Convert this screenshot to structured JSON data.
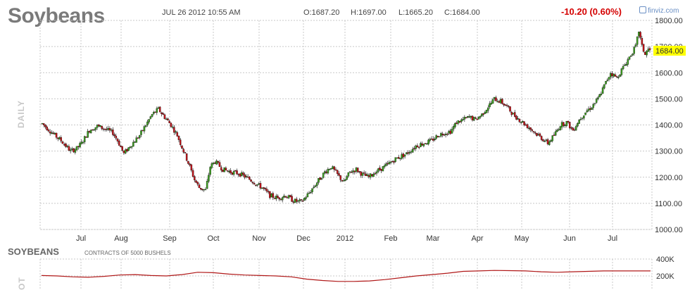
{
  "header": {
    "title": "Soybeans",
    "timestamp": "JUL 26 2012 10:55 AM",
    "open": "O:1687.20",
    "high": "H:1697.00",
    "low": "L:1665.20",
    "close": "C:1684.00",
    "change": "-10.20 (0.60%)",
    "brand": "finviz.com"
  },
  "chart_data": [
    {
      "type": "candlestick",
      "timeframe_label": "DAILY",
      "x_tick_labels": [
        "Jul",
        "Aug",
        "Sep",
        "Oct",
        "Nov",
        "Dec",
        "2012",
        "Feb",
        "Mar",
        "Apr",
        "May",
        "Jun",
        "Jul"
      ],
      "y_ticks": [
        1000,
        1100,
        1200,
        1300,
        1400,
        1500,
        1600,
        1700,
        1800
      ],
      "y_tick_labels": [
        "1000.00",
        "1100.00",
        "1200.00",
        "1300.00",
        "1400.00",
        "1500.00",
        "1600.00",
        "1700.00",
        "1800.00"
      ],
      "ylim": [
        1000,
        1800
      ],
      "grid": true,
      "last_price": 1684.0,
      "last_price_label": "1684.00",
      "colors": {
        "up": "#3a9c1e",
        "down": "#c0141a",
        "wick": "#000000",
        "grid": "#c8c8c8",
        "price_tag": "#ffff00"
      },
      "trend": [
        [
          0,
          1405
        ],
        [
          8,
          1360
        ],
        [
          12,
          1340
        ],
        [
          18,
          1300
        ],
        [
          22,
          1310
        ],
        [
          25,
          1330
        ],
        [
          30,
          1380
        ],
        [
          35,
          1395
        ],
        [
          40,
          1385
        ],
        [
          45,
          1370
        ],
        [
          48,
          1340
        ],
        [
          52,
          1290
        ],
        [
          56,
          1320
        ],
        [
          62,
          1360
        ],
        [
          66,
          1400
        ],
        [
          70,
          1440
        ],
        [
          74,
          1460
        ],
        [
          78,
          1430
        ],
        [
          82,
          1400
        ],
        [
          86,
          1360
        ],
        [
          90,
          1300
        ],
        [
          94,
          1240
        ],
        [
          97,
          1190
        ],
        [
          100,
          1160
        ],
        [
          104,
          1150
        ],
        [
          107,
          1240
        ],
        [
          110,
          1260
        ],
        [
          115,
          1230
        ],
        [
          120,
          1220
        ],
        [
          125,
          1215
        ],
        [
          130,
          1200
        ],
        [
          135,
          1180
        ],
        [
          140,
          1160
        ],
        [
          145,
          1130
        ],
        [
          150,
          1120
        ],
        [
          155,
          1130
        ],
        [
          160,
          1110
        ],
        [
          165,
          1105
        ],
        [
          170,
          1140
        ],
        [
          175,
          1180
        ],
        [
          180,
          1220
        ],
        [
          184,
          1240
        ],
        [
          188,
          1210
        ],
        [
          192,
          1180
        ],
        [
          196,
          1220
        ],
        [
          200,
          1230
        ],
        [
          204,
          1210
        ],
        [
          208,
          1200
        ],
        [
          212,
          1220
        ],
        [
          218,
          1240
        ],
        [
          225,
          1270
        ],
        [
          232,
          1290
        ],
        [
          238,
          1320
        ],
        [
          243,
          1330
        ],
        [
          248,
          1340
        ],
        [
          252,
          1360
        ],
        [
          256,
          1370
        ],
        [
          260,
          1375
        ],
        [
          264,
          1410
        ],
        [
          268,
          1420
        ],
        [
          272,
          1430
        ],
        [
          276,
          1420
        ],
        [
          280,
          1440
        ],
        [
          284,
          1470
        ],
        [
          288,
          1500
        ],
        [
          292,
          1490
        ],
        [
          296,
          1470
        ],
        [
          300,
          1440
        ],
        [
          304,
          1420
        ],
        [
          308,
          1400
        ],
        [
          312,
          1380
        ],
        [
          316,
          1360
        ],
        [
          320,
          1340
        ],
        [
          322,
          1330
        ],
        [
          326,
          1360
        ],
        [
          330,
          1400
        ],
        [
          334,
          1410
        ],
        [
          338,
          1380
        ],
        [
          342,
          1420
        ],
        [
          346,
          1450
        ],
        [
          350,
          1470
        ],
        [
          354,
          1500
        ],
        [
          358,
          1550
        ],
        [
          362,
          1600
        ],
        [
          366,
          1580
        ],
        [
          370,
          1620
        ],
        [
          374,
          1660
        ],
        [
          378,
          1700
        ],
        [
          380,
          1760
        ],
        [
          382,
          1700
        ],
        [
          384,
          1670
        ],
        [
          386,
          1690
        ],
        [
          387,
          1684
        ]
      ]
    },
    {
      "type": "line",
      "title": "SOYBEANS",
      "subtitle": "CONTRACTS OF 5000 BUSHELS",
      "side_label": "OT",
      "y_tick_labels": [
        "400K",
        "200K"
      ],
      "colors": {
        "line": "#b01818"
      },
      "values": [
        205,
        200,
        190,
        185,
        195,
        210,
        215,
        205,
        200,
        215,
        240,
        235,
        220,
        210,
        205,
        200,
        190,
        165,
        150,
        140,
        140,
        145,
        160,
        180,
        200,
        215,
        230,
        250,
        255,
        260,
        258,
        255,
        245,
        240,
        245,
        250,
        255,
        255,
        255,
        255
      ]
    }
  ]
}
